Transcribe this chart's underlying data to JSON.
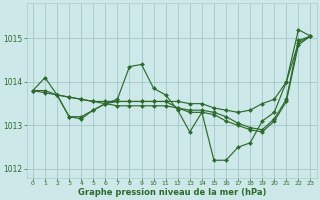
{
  "background_color": "#cce8e8",
  "grid_color": "#aacccc",
  "line_color": "#2d6b2d",
  "marker_color": "#2d6b2d",
  "xlabel": "Graphe pression niveau de la mer (hPa)",
  "tick_color": "#2d6b2d",
  "ylim": [
    1011.8,
    1015.8
  ],
  "xlim": [
    -0.5,
    23.5
  ],
  "yticks": [
    1012,
    1013,
    1014,
    1015
  ],
  "xticks": [
    0,
    1,
    2,
    3,
    4,
    5,
    6,
    7,
    8,
    9,
    10,
    11,
    12,
    13,
    14,
    15,
    16,
    17,
    18,
    19,
    20,
    21,
    22,
    23
  ],
  "series": [
    {
      "x": [
        0,
        1,
        2,
        3,
        4,
        5,
        6,
        7,
        8,
        9,
        10,
        11,
        12,
        13,
        14,
        15,
        16,
        17,
        18,
        19,
        20,
        21,
        22,
        23
      ],
      "y": [
        1013.8,
        1014.1,
        1013.7,
        1013.2,
        1013.2,
        1013.35,
        1013.5,
        1013.6,
        1014.35,
        1014.4,
        1013.85,
        1013.7,
        1013.35,
        1012.85,
        1013.3,
        1012.2,
        1012.2,
        1012.5,
        1012.6,
        1013.1,
        1013.3,
        1014.0,
        1015.2,
        1015.05
      ]
    },
    {
      "x": [
        0,
        1,
        2,
        3,
        4,
        5,
        6,
        7,
        8,
        9,
        10,
        11,
        12,
        13,
        14,
        15,
        16,
        17,
        18,
        19,
        20,
        21,
        22,
        23
      ],
      "y": [
        1013.8,
        1013.8,
        1013.7,
        1013.65,
        1013.6,
        1013.55,
        1013.55,
        1013.55,
        1013.55,
        1013.55,
        1013.55,
        1013.55,
        1013.55,
        1013.5,
        1013.5,
        1013.4,
        1013.35,
        1013.3,
        1013.35,
        1013.5,
        1013.6,
        1014.0,
        1014.9,
        1015.05
      ]
    },
    {
      "x": [
        2,
        3,
        4,
        5,
        6,
        7,
        8,
        9,
        10,
        11,
        12,
        13,
        14,
        15,
        16,
        17,
        18,
        19,
        20,
        21,
        22,
        23
      ],
      "y": [
        1013.7,
        1013.2,
        1013.15,
        1013.35,
        1013.5,
        1013.55,
        1013.55,
        1013.55,
        1013.55,
        1013.55,
        1013.4,
        1013.3,
        1013.3,
        1013.25,
        1013.1,
        1013.0,
        1012.9,
        1012.85,
        1013.1,
        1013.55,
        1014.85,
        1015.05
      ]
    },
    {
      "x": [
        0,
        1,
        2,
        3,
        4,
        5,
        6,
        7,
        8,
        9,
        10,
        11,
        12,
        13,
        14,
        15,
        16,
        17,
        18,
        19,
        20,
        21,
        22,
        23
      ],
      "y": [
        1013.8,
        1013.75,
        1013.7,
        1013.65,
        1013.6,
        1013.55,
        1013.5,
        1013.45,
        1013.45,
        1013.45,
        1013.45,
        1013.45,
        1013.4,
        1013.35,
        1013.35,
        1013.3,
        1013.2,
        1013.05,
        1012.95,
        1012.9,
        1013.15,
        1013.6,
        1014.95,
        1015.05
      ]
    }
  ]
}
